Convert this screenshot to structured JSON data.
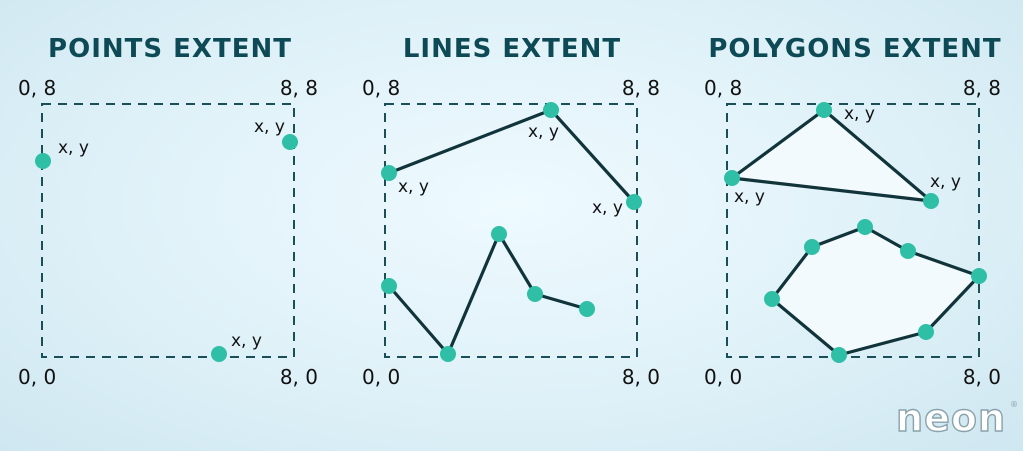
{
  "panels": {
    "points": {
      "title": "POINTS EXTENT",
      "corners": {
        "top_left": "0, 8",
        "top_right": "8, 8",
        "bottom_left": "0, 0",
        "bottom_right": "8, 0"
      },
      "point_labels": [
        "x, y",
        "x, y",
        "x, y"
      ]
    },
    "lines": {
      "title": "LINES EXTENT",
      "corners": {
        "top_left": "0, 8",
        "top_right": "8, 8",
        "bottom_left": "0, 0",
        "bottom_right": "8, 0"
      },
      "point_labels": [
        "x, y",
        "x, y",
        "x, y"
      ]
    },
    "polygons": {
      "title": "POLYGONS EXTENT",
      "corners": {
        "top_left": "0, 8",
        "top_right": "8, 8",
        "bottom_left": "0, 0",
        "bottom_right": "8, 0"
      },
      "point_labels": [
        "x, y",
        "x, y",
        "x, y"
      ]
    }
  },
  "colors": {
    "title": "#0d4a55",
    "point": "#2ebfa6",
    "line": "#10343a",
    "extent_box": "#1a4f58",
    "polygon_fill": "#f3fafd"
  },
  "logo": {
    "text": "neon",
    "mark": "®"
  }
}
